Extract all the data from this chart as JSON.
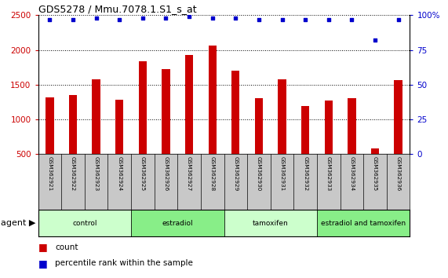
{
  "title": "GDS5278 / Mmu.7078.1.S1_s_at",
  "samples": [
    "GSM362921",
    "GSM362922",
    "GSM362923",
    "GSM362924",
    "GSM362925",
    "GSM362926",
    "GSM362927",
    "GSM362928",
    "GSM362929",
    "GSM362930",
    "GSM362931",
    "GSM362932",
    "GSM362933",
    "GSM362934",
    "GSM362935",
    "GSM362936"
  ],
  "counts": [
    1320,
    1350,
    1580,
    1285,
    1840,
    1730,
    1930,
    2070,
    1700,
    1305,
    1575,
    1200,
    1275,
    1310,
    580,
    1570
  ],
  "percentiles": [
    97,
    97,
    98,
    97,
    98,
    98,
    99,
    98,
    98,
    97,
    97,
    97,
    97,
    97,
    82,
    97
  ],
  "bar_color": "#cc0000",
  "dot_color": "#0000cc",
  "ylim_left": [
    500,
    2500
  ],
  "ylim_right": [
    0,
    100
  ],
  "yticks_left": [
    500,
    1000,
    1500,
    2000,
    2500
  ],
  "yticks_right": [
    0,
    25,
    50,
    75,
    100
  ],
  "groups": [
    {
      "label": "control",
      "start": 0,
      "end": 4,
      "color": "#ccffcc"
    },
    {
      "label": "estradiol",
      "start": 4,
      "end": 8,
      "color": "#88ee88"
    },
    {
      "label": "tamoxifen",
      "start": 8,
      "end": 12,
      "color": "#ccffcc"
    },
    {
      "label": "estradiol and tamoxifen",
      "start": 12,
      "end": 16,
      "color": "#88ee88"
    }
  ],
  "agent_label": "agent",
  "legend_count_label": "count",
  "legend_pct_label": "percentile rank within the sample",
  "tick_color_left": "#cc0000",
  "tick_color_right": "#0000cc",
  "bg_names": "#c8c8c8"
}
